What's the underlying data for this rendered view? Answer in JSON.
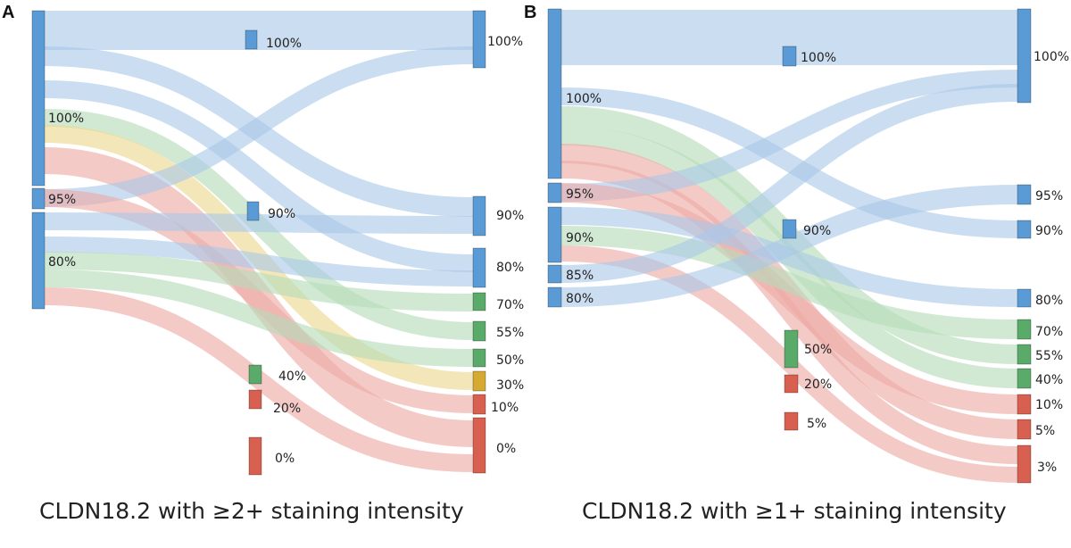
{
  "colors": {
    "blue": "#5b9bd5",
    "blue_link": "#a9c8e8",
    "green": "#5aaa6a",
    "green_link": "#b4dbb8",
    "yellow": "#d4aa33",
    "yellow_link": "#ecd98e",
    "red": "#d86050",
    "red_link": "#eeaaa4",
    "node_border": "#2a5f8f"
  },
  "panels": [
    {
      "letter": "A",
      "caption": "CLDN18.2 with ≥2+ staining intensity",
      "nodes": [
        {
          "id": "a_l100",
          "col": "left",
          "label": "100%",
          "color": "blue"
        },
        {
          "id": "a_l95",
          "col": "left",
          "label": "95%",
          "color": "blue"
        },
        {
          "id": "a_l80",
          "col": "left",
          "label": "80%",
          "color": "blue"
        },
        {
          "id": "a_m100",
          "col": "mid",
          "label": "100%",
          "color": "blue"
        },
        {
          "id": "a_m90",
          "col": "mid",
          "label": "90%",
          "color": "blue"
        },
        {
          "id": "a_m40",
          "col": "mid",
          "label": "40%",
          "color": "green"
        },
        {
          "id": "a_m20",
          "col": "mid",
          "label": "20%",
          "color": "red"
        },
        {
          "id": "a_m0",
          "col": "mid",
          "label": "0%",
          "color": "red"
        },
        {
          "id": "a_r100",
          "col": "right",
          "label": "100%",
          "color": "blue"
        },
        {
          "id": "a_r90",
          "col": "right",
          "label": "90%",
          "color": "blue"
        },
        {
          "id": "a_r80",
          "col": "right",
          "label": "80%",
          "color": "blue"
        },
        {
          "id": "a_r70",
          "col": "right",
          "label": "70%",
          "color": "green"
        },
        {
          "id": "a_r55",
          "col": "right",
          "label": "55%",
          "color": "green"
        },
        {
          "id": "a_r50",
          "col": "right",
          "label": "50%",
          "color": "green"
        },
        {
          "id": "a_r30",
          "col": "right",
          "label": "30%",
          "color": "yellow"
        },
        {
          "id": "a_r10",
          "col": "right",
          "label": "10%",
          "color": "red"
        },
        {
          "id": "a_r0",
          "col": "right",
          "label": "0%",
          "color": "red"
        }
      ],
      "links": [
        {
          "from": "a_l100",
          "to": "a_r100",
          "color": "blue"
        },
        {
          "from": "a_l100",
          "to": "a_r90",
          "color": "blue"
        },
        {
          "from": "a_l100",
          "to": "a_r80",
          "color": "blue"
        },
        {
          "from": "a_l100",
          "to": "a_r55",
          "color": "green"
        },
        {
          "from": "a_l100",
          "to": "a_r30",
          "color": "yellow"
        },
        {
          "from": "a_l100",
          "to": "a_r0",
          "color": "red"
        },
        {
          "from": "a_l95",
          "to": "a_r100",
          "color": "blue"
        },
        {
          "from": "a_l95",
          "to": "a_r10",
          "color": "red"
        },
        {
          "from": "a_l80",
          "to": "a_r90",
          "color": "blue"
        },
        {
          "from": "a_l80",
          "to": "a_r80",
          "color": "blue"
        },
        {
          "from": "a_l80",
          "to": "a_r70",
          "color": "green"
        },
        {
          "from": "a_l80",
          "to": "a_r50",
          "color": "green"
        },
        {
          "from": "a_l80",
          "to": "a_r0",
          "color": "red"
        }
      ]
    },
    {
      "letter": "B",
      "caption": "CLDN18.2 with ≥1+ staining intensity",
      "nodes": [
        {
          "id": "b_l100",
          "col": "left",
          "label": "100%",
          "color": "blue"
        },
        {
          "id": "b_l95",
          "col": "left",
          "label": "95%",
          "color": "blue"
        },
        {
          "id": "b_l90",
          "col": "left",
          "label": "90%",
          "color": "blue"
        },
        {
          "id": "b_l85",
          "col": "left",
          "label": "85%",
          "color": "blue"
        },
        {
          "id": "b_l80",
          "col": "left",
          "label": "80%",
          "color": "blue"
        },
        {
          "id": "b_m100",
          "col": "mid",
          "label": "100%",
          "color": "blue"
        },
        {
          "id": "b_m90",
          "col": "mid",
          "label": "90%",
          "color": "blue"
        },
        {
          "id": "b_m50",
          "col": "mid",
          "label": "50%",
          "color": "green"
        },
        {
          "id": "b_m20",
          "col": "mid",
          "label": "20%",
          "color": "red"
        },
        {
          "id": "b_m5",
          "col": "mid",
          "label": "5%",
          "color": "red"
        },
        {
          "id": "b_r100",
          "col": "right",
          "label": "100%",
          "color": "blue"
        },
        {
          "id": "b_r95",
          "col": "right",
          "label": "95%",
          "color": "blue"
        },
        {
          "id": "b_r90",
          "col": "right",
          "label": "90%",
          "color": "blue"
        },
        {
          "id": "b_r80",
          "col": "right",
          "label": "80%",
          "color": "blue"
        },
        {
          "id": "b_r70",
          "col": "right",
          "label": "70%",
          "color": "green"
        },
        {
          "id": "b_r55",
          "col": "right",
          "label": "55%",
          "color": "green"
        },
        {
          "id": "b_r40",
          "col": "right",
          "label": "40%",
          "color": "green"
        },
        {
          "id": "b_r10",
          "col": "right",
          "label": "10%",
          "color": "red"
        },
        {
          "id": "b_r5",
          "col": "right",
          "label": "5%",
          "color": "red"
        },
        {
          "id": "b_r3",
          "col": "right",
          "label": "3%",
          "color": "red"
        }
      ],
      "links": [
        {
          "from": "b_l100",
          "to": "b_r100",
          "color": "blue"
        },
        {
          "from": "b_l100",
          "to": "b_r90",
          "color": "blue"
        },
        {
          "from": "b_l100",
          "to": "b_r55",
          "color": "green"
        },
        {
          "from": "b_l100",
          "to": "b_r40",
          "color": "green"
        },
        {
          "from": "b_l100",
          "to": "b_r5",
          "color": "red"
        },
        {
          "from": "b_l100",
          "to": "b_r3",
          "color": "red"
        },
        {
          "from": "b_l95",
          "to": "b_r100",
          "color": "blue"
        },
        {
          "from": "b_l95",
          "to": "b_r10",
          "color": "red"
        },
        {
          "from": "b_l90",
          "to": "b_r80",
          "color": "blue"
        },
        {
          "from": "b_l90",
          "to": "b_r70",
          "color": "green"
        },
        {
          "from": "b_l90",
          "to": "b_r3",
          "color": "red"
        },
        {
          "from": "b_l85",
          "to": "b_r100",
          "color": "blue"
        },
        {
          "from": "b_l80",
          "to": "b_r95",
          "color": "blue"
        }
      ]
    }
  ]
}
